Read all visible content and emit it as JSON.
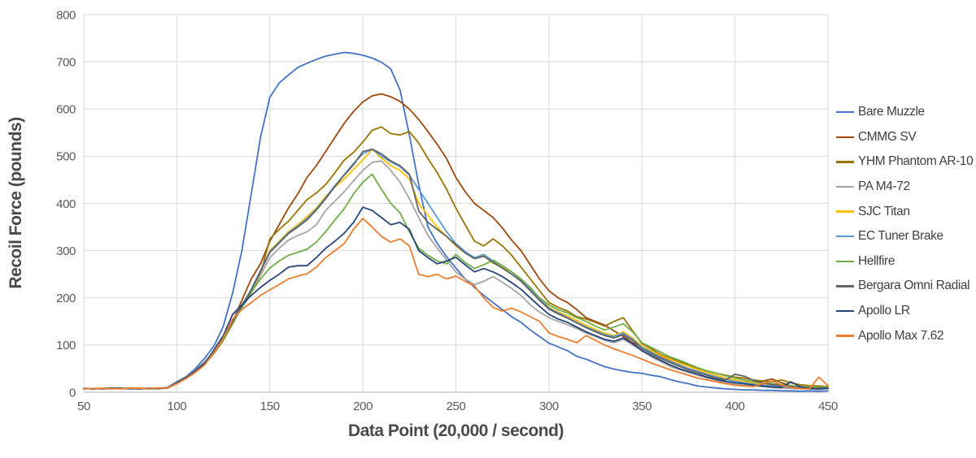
{
  "chart_data": {
    "type": "line",
    "title": "",
    "xlabel": "Data Point (20,000 / second)",
    "ylabel": "Recoil Force (pounds)",
    "xlim": [
      50,
      450
    ],
    "ylim": [
      0,
      800
    ],
    "x_ticks": [
      50,
      100,
      150,
      200,
      250,
      300,
      350,
      400,
      450
    ],
    "y_ticks": [
      0,
      100,
      200,
      300,
      400,
      500,
      600,
      700,
      800
    ],
    "grid": true,
    "legend_position": "right",
    "grid_color": "#d9d9d9",
    "axis_line_color": "#bfbfbf",
    "tick_label_color": "#595959",
    "x": [
      50,
      55,
      60,
      65,
      70,
      75,
      80,
      85,
      90,
      95,
      100,
      105,
      110,
      115,
      120,
      125,
      130,
      135,
      140,
      145,
      150,
      155,
      160,
      165,
      170,
      175,
      180,
      185,
      190,
      195,
      200,
      205,
      210,
      215,
      220,
      225,
      230,
      235,
      240,
      245,
      250,
      255,
      260,
      265,
      270,
      275,
      280,
      285,
      290,
      295,
      300,
      305,
      310,
      315,
      320,
      325,
      330,
      335,
      340,
      345,
      350,
      355,
      360,
      365,
      370,
      375,
      380,
      385,
      390,
      395,
      400,
      405,
      410,
      415,
      420,
      425,
      430,
      435,
      440,
      445,
      450
    ],
    "series": [
      {
        "name": "Bare Muzzle",
        "color": "#4472C4",
        "values": [
          8,
          7,
          8,
          9,
          8,
          7,
          9,
          8,
          8,
          10,
          22,
          33,
          50,
          72,
          98,
          140,
          210,
          300,
          420,
          540,
          625,
          655,
          672,
          688,
          697,
          705,
          712,
          716,
          720,
          718,
          714,
          708,
          699,
          685,
          640,
          545,
          440,
          350,
          315,
          287,
          263,
          240,
          222,
          205,
          190,
          175,
          160,
          148,
          132,
          118,
          104,
          96,
          88,
          76,
          70,
          62,
          54,
          49,
          45,
          42,
          40,
          36,
          33,
          27,
          22,
          18,
          13,
          11,
          9,
          7,
          6,
          5,
          5,
          4,
          4,
          3,
          3,
          2,
          3,
          2,
          3
        ]
      },
      {
        "name": "CMMG SV",
        "color": "#9E480E",
        "values": [
          8,
          8,
          7,
          9,
          8,
          8,
          7,
          9,
          8,
          9,
          20,
          32,
          45,
          62,
          85,
          115,
          150,
          195,
          240,
          272,
          320,
          355,
          390,
          420,
          455,
          480,
          510,
          540,
          570,
          595,
          615,
          628,
          632,
          626,
          616,
          600,
          578,
          552,
          525,
          495,
          455,
          425,
          400,
          385,
          370,
          348,
          322,
          300,
          270,
          240,
          215,
          200,
          190,
          175,
          158,
          150,
          142,
          130,
          118,
          105,
          95,
          85,
          76,
          66,
          58,
          50,
          44,
          38,
          32,
          28,
          25,
          22,
          20,
          24,
          28,
          20,
          14,
          10,
          9,
          12,
          8
        ]
      },
      {
        "name": "YHM Phantom AR-10",
        "color": "#997300",
        "values": [
          7,
          8,
          8,
          8,
          9,
          7,
          8,
          8,
          9,
          9,
          18,
          30,
          44,
          60,
          82,
          110,
          145,
          180,
          215,
          250,
          325,
          345,
          362,
          385,
          408,
          422,
          440,
          465,
          492,
          508,
          530,
          555,
          562,
          548,
          545,
          552,
          528,
          495,
          465,
          430,
          390,
          355,
          320,
          310,
          325,
          310,
          290,
          265,
          240,
          215,
          190,
          180,
          172,
          160,
          155,
          148,
          140,
          150,
          158,
          130,
          103,
          92,
          80,
          72,
          65,
          58,
          50,
          45,
          40,
          36,
          32,
          30,
          26,
          24,
          22,
          26,
          20,
          16,
          14,
          13,
          12
        ]
      },
      {
        "name": "PA M4-72",
        "color": "#A5A5A5",
        "values": [
          8,
          7,
          8,
          8,
          7,
          9,
          8,
          8,
          8,
          9,
          19,
          31,
          45,
          61,
          84,
          112,
          148,
          178,
          210,
          248,
          285,
          305,
          322,
          332,
          340,
          355,
          385,
          405,
          425,
          448,
          470,
          487,
          490,
          470,
          445,
          410,
          370,
          332,
          305,
          280,
          255,
          240,
          228,
          235,
          245,
          233,
          220,
          205,
          185,
          170,
          158,
          150,
          143,
          135,
          125,
          118,
          110,
          105,
          112,
          100,
          88,
          75,
          65,
          55,
          48,
          42,
          36,
          30,
          25,
          20,
          17,
          15,
          13,
          12,
          10,
          9,
          8,
          7,
          7,
          6,
          8
        ]
      },
      {
        "name": "SJC Titan",
        "color": "#FFC000",
        "values": [
          8,
          8,
          9,
          7,
          8,
          8,
          9,
          8,
          7,
          9,
          20,
          32,
          46,
          63,
          86,
          115,
          150,
          182,
          215,
          255,
          300,
          320,
          340,
          355,
          372,
          390,
          415,
          435,
          452,
          472,
          492,
          515,
          496,
          480,
          470,
          452,
          400,
          375,
          350,
          330,
          310,
          295,
          285,
          290,
          273,
          265,
          255,
          240,
          220,
          200,
          180,
          170,
          162,
          152,
          142,
          133,
          125,
          120,
          128,
          115,
          98,
          88,
          78,
          70,
          62,
          55,
          48,
          42,
          36,
          30,
          26,
          22,
          20,
          18,
          16,
          15,
          12,
          10,
          10,
          9,
          10
        ]
      },
      {
        "name": "EC Tuner Brake",
        "color": "#5B9BD5",
        "values": [
          7,
          8,
          8,
          9,
          8,
          7,
          8,
          9,
          8,
          9,
          20,
          33,
          47,
          64,
          87,
          117,
          152,
          185,
          218,
          258,
          298,
          318,
          338,
          352,
          368,
          388,
          412,
          438,
          461,
          485,
          505,
          515,
          500,
          488,
          478,
          460,
          430,
          400,
          370,
          340,
          315,
          298,
          285,
          292,
          278,
          268,
          255,
          238,
          218,
          198,
          178,
          168,
          158,
          148,
          138,
          130,
          122,
          118,
          125,
          112,
          95,
          85,
          74,
          65,
          58,
          50,
          44,
          38,
          32,
          27,
          23,
          20,
          17,
          15,
          13,
          12,
          10,
          9,
          8,
          8,
          9
        ]
      },
      {
        "name": "Hellfire",
        "color": "#70AD47",
        "values": [
          8,
          7,
          8,
          8,
          9,
          8,
          7,
          8,
          9,
          9,
          19,
          31,
          44,
          62,
          85,
          112,
          148,
          180,
          212,
          240,
          263,
          278,
          290,
          296,
          303,
          318,
          340,
          365,
          389,
          420,
          445,
          462,
          430,
          400,
          380,
          340,
          305,
          290,
          278,
          272,
          292,
          275,
          262,
          270,
          280,
          268,
          255,
          240,
          222,
          200,
          185,
          175,
          168,
          158,
          150,
          140,
          132,
          138,
          145,
          128,
          105,
          95,
          85,
          75,
          68,
          60,
          52,
          45,
          40,
          35,
          30,
          26,
          22,
          20,
          18,
          16,
          14,
          12,
          11,
          10,
          12
        ]
      },
      {
        "name": "Bergara Omni Radial",
        "color": "#636363",
        "values": [
          8,
          8,
          7,
          8,
          8,
          9,
          8,
          7,
          8,
          9,
          20,
          32,
          46,
          63,
          86,
          116,
          150,
          183,
          216,
          256,
          296,
          316,
          336,
          350,
          365,
          386,
          410,
          436,
          460,
          482,
          510,
          515,
          505,
          490,
          480,
          462,
          384,
          360,
          345,
          330,
          312,
          295,
          283,
          288,
          275,
          263,
          250,
          235,
          215,
          195,
          176,
          166,
          157,
          147,
          137,
          128,
          120,
          115,
          122,
          110,
          92,
          82,
          72,
          63,
          55,
          48,
          42,
          36,
          30,
          26,
          38,
          34,
          25,
          20,
          16,
          14,
          12,
          10,
          9,
          8,
          9
        ]
      },
      {
        "name": "Apollo LR",
        "color": "#264478",
        "values": [
          8,
          7,
          8,
          9,
          8,
          8,
          7,
          8,
          8,
          9,
          19,
          30,
          43,
          60,
          90,
          120,
          165,
          185,
          205,
          222,
          237,
          250,
          265,
          268,
          268,
          285,
          305,
          320,
          337,
          360,
          392,
          385,
          370,
          355,
          360,
          345,
          300,
          285,
          272,
          278,
          286,
          270,
          255,
          262,
          255,
          245,
          232,
          218,
          200,
          182,
          165,
          155,
          148,
          138,
          128,
          120,
          112,
          108,
          115,
          103,
          88,
          78,
          68,
          58,
          50,
          44,
          38,
          32,
          27,
          23,
          20,
          18,
          15,
          13,
          11,
          10,
          22,
          12,
          8,
          7,
          8
        ]
      },
      {
        "name": "Apollo Max 7.62",
        "color": "#ED7D31",
        "values": [
          7,
          8,
          8,
          8,
          7,
          9,
          8,
          8,
          9,
          9,
          18,
          29,
          42,
          58,
          85,
          115,
          155,
          175,
          190,
          205,
          217,
          228,
          240,
          246,
          251,
          265,
          285,
          300,
          315,
          345,
          368,
          350,
          330,
          318,
          325,
          310,
          250,
          245,
          250,
          240,
          246,
          235,
          225,
          200,
          180,
          172,
          178,
          170,
          160,
          150,
          126,
          118,
          112,
          105,
          120,
          110,
          100,
          92,
          85,
          78,
          70,
          62,
          55,
          48,
          42,
          36,
          30,
          26,
          22,
          18,
          15,
          13,
          12,
          18,
          24,
          15,
          10,
          8,
          7,
          32,
          14
        ]
      }
    ]
  }
}
